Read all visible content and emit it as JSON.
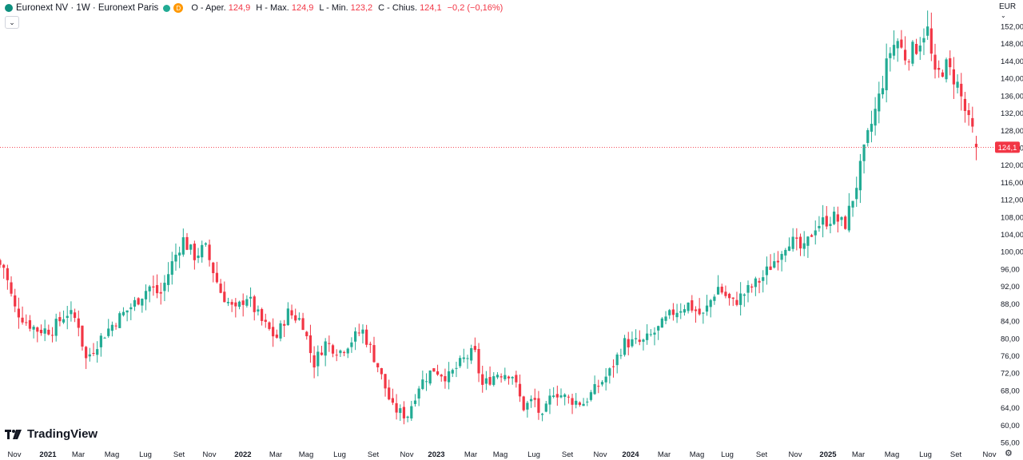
{
  "header": {
    "title": "Euronext NV · 1W · Euronext Paris",
    "delay_badge": "D",
    "open_label": "O - Aper.",
    "open_value": "124,9",
    "high_label": "H - Max.",
    "high_value": "124,9",
    "low_label": "L - Min.",
    "low_value": "123,2",
    "close_label": "C - Chius.",
    "close_value": "124,1",
    "change_value": "−0,2 (−0,16%)"
  },
  "currency": "EUR",
  "brand_text": "TradingView",
  "icons": {
    "logo": "euronext-logo-icon",
    "collapse": "chevron-down-icon",
    "currency_menu": "chevron-down-icon",
    "settings": "settings-icon"
  },
  "colors": {
    "up": "#22ab94",
    "down": "#f23645",
    "price_line": "#f23645"
  },
  "chart_data": {
    "type": "candlestick",
    "interval": "1W",
    "symbol": "Euronext NV",
    "exchange": "Euronext Paris",
    "currency": "EUR",
    "ylim": [
      56,
      154
    ],
    "y_ticks": [
      "56,00",
      "60,00",
      "64,00",
      "68,00",
      "72,00",
      "76,00",
      "80,00",
      "84,00",
      "88,00",
      "92,00",
      "96,00",
      "100,00",
      "104,00",
      "108,00",
      "112,00",
      "116,00",
      "120,00",
      "124,00",
      "128,00",
      "132,00",
      "136,00",
      "140,00",
      "144,00",
      "148,00",
      "152,00"
    ],
    "x_ticks": [
      "Nov",
      "2021",
      "Mar",
      "Mag",
      "Lug",
      "Set",
      "Nov",
      "2022",
      "Mar",
      "Mag",
      "Lug",
      "Set",
      "Nov",
      "2023",
      "Mar",
      "Mag",
      "Lug",
      "Set",
      "Nov",
      "2024",
      "Mar",
      "Mag",
      "Lug",
      "Set",
      "Nov",
      "2025",
      "Mar",
      "Mag",
      "Lug",
      "Set",
      "Nov"
    ],
    "last_price": 124.1,
    "last_price_label": "124,1",
    "grid": false,
    "path_points": [
      [
        "2020-10-05",
        97
      ],
      [
        "2020-10-26",
        87
      ],
      [
        "2020-11-16",
        84
      ],
      [
        "2020-12-07",
        82
      ],
      [
        "2021-01-04",
        82
      ],
      [
        "2021-02-01",
        86
      ],
      [
        "2021-02-22",
        84
      ],
      [
        "2021-03-08",
        75
      ],
      [
        "2021-04-05",
        80
      ],
      [
        "2021-05-03",
        84
      ],
      [
        "2021-06-07",
        88
      ],
      [
        "2021-07-05",
        92
      ],
      [
        "2021-07-26",
        90
      ],
      [
        "2021-08-16",
        97
      ],
      [
        "2021-09-06",
        103
      ],
      [
        "2021-09-27",
        99
      ],
      [
        "2021-10-18",
        101
      ],
      [
        "2021-11-15",
        91
      ],
      [
        "2021-12-13",
        86
      ],
      [
        "2022-01-03",
        90
      ],
      [
        "2022-01-31",
        84
      ],
      [
        "2022-02-28",
        80
      ],
      [
        "2022-03-21",
        86
      ],
      [
        "2022-04-18",
        84
      ],
      [
        "2022-05-09",
        74
      ],
      [
        "2022-05-30",
        79
      ],
      [
        "2022-06-27",
        77
      ],
      [
        "2022-08-08",
        82
      ],
      [
        "2022-09-05",
        74
      ],
      [
        "2022-10-03",
        64
      ],
      [
        "2022-10-31",
        62
      ],
      [
        "2022-11-21",
        69
      ],
      [
        "2022-12-19",
        73
      ],
      [
        "2023-01-16",
        71
      ],
      [
        "2023-02-13",
        75
      ],
      [
        "2023-03-06",
        77
      ],
      [
        "2023-03-20",
        69
      ],
      [
        "2023-04-17",
        72
      ],
      [
        "2023-05-15",
        72
      ],
      [
        "2023-06-05",
        64
      ],
      [
        "2023-06-26",
        66
      ],
      [
        "2023-07-10",
        61
      ],
      [
        "2023-07-31",
        68
      ],
      [
        "2023-08-28",
        66
      ],
      [
        "2023-09-25",
        65
      ],
      [
        "2023-10-16",
        68
      ],
      [
        "2023-11-13",
        72
      ],
      [
        "2023-12-11",
        79
      ],
      [
        "2024-01-15",
        79
      ],
      [
        "2024-02-12",
        82
      ],
      [
        "2024-03-11",
        86
      ],
      [
        "2024-04-08",
        88
      ],
      [
        "2024-05-06",
        85
      ],
      [
        "2024-06-03",
        92
      ],
      [
        "2024-07-01",
        88
      ],
      [
        "2024-07-29",
        91
      ],
      [
        "2024-08-26",
        94
      ],
      [
        "2024-09-23",
        99
      ],
      [
        "2024-10-14",
        103
      ],
      [
        "2024-11-11",
        100
      ],
      [
        "2024-12-02",
        106
      ],
      [
        "2025-01-06",
        108
      ],
      [
        "2025-01-27",
        106
      ],
      [
        "2025-02-17",
        115
      ],
      [
        "2025-03-10",
        126
      ],
      [
        "2025-03-31",
        135
      ],
      [
        "2025-04-21",
        146
      ],
      [
        "2025-05-05",
        149
      ],
      [
        "2025-05-19",
        145
      ],
      [
        "2025-06-09",
        147
      ],
      [
        "2025-06-30",
        152
      ],
      [
        "2025-07-14",
        140
      ],
      [
        "2025-08-04",
        143
      ],
      [
        "2025-08-25",
        139
      ],
      [
        "2025-09-15",
        130
      ],
      [
        "2025-10-06",
        124.1
      ]
    ]
  }
}
